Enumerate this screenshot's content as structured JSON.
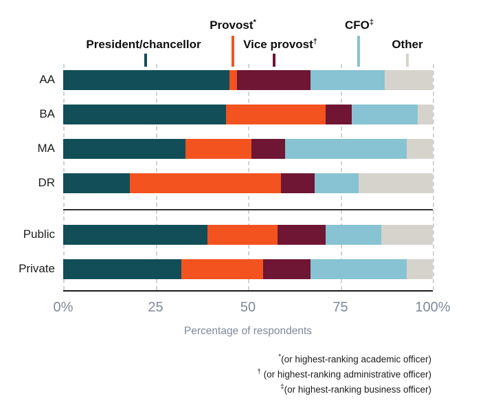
{
  "chart_data": {
    "type": "bar",
    "orientation": "horizontal",
    "stacked": true,
    "categories": [
      "AA",
      "BA",
      "MA",
      "DR",
      "Public",
      "Private"
    ],
    "group_separator_after": "DR",
    "series": [
      {
        "name": "President/chancellor",
        "sup": "",
        "color": "#124e57",
        "values": [
          45,
          44,
          33,
          18,
          39,
          32
        ]
      },
      {
        "name": "Provost",
        "sup": "*",
        "color": "#f3531f",
        "values": [
          2,
          27,
          18,
          41,
          19,
          22
        ]
      },
      {
        "name": "Vice provost",
        "sup": "†",
        "color": "#6e1633",
        "values": [
          20,
          7,
          9,
          9,
          13,
          13
        ]
      },
      {
        "name": "CFO",
        "sup": "‡",
        "color": "#87c3d2",
        "values": [
          20,
          18,
          33,
          12,
          15,
          26
        ]
      },
      {
        "name": "Other",
        "sup": "",
        "color": "#d5d3cc",
        "values": [
          13,
          4,
          7,
          20,
          14,
          7
        ]
      }
    ],
    "xlabel": "Percentage of respondents",
    "x_ticks": [
      "0%",
      "25",
      "50",
      "75",
      "100%"
    ],
    "xlim": [
      0,
      100
    ],
    "grid": "dashed-vertical",
    "legend_position": "top",
    "axis_text_color": "#7e8a99",
    "label_text_color": "#1a1a1a"
  },
  "footnotes": [
    {
      "symbol": "*",
      "text": "(or highest-ranking academic officer)"
    },
    {
      "symbol": "†",
      "text": " (or highest-ranking administrative officer)"
    },
    {
      "symbol": "‡",
      "text": "(or highest-ranking business officer)"
    }
  ]
}
